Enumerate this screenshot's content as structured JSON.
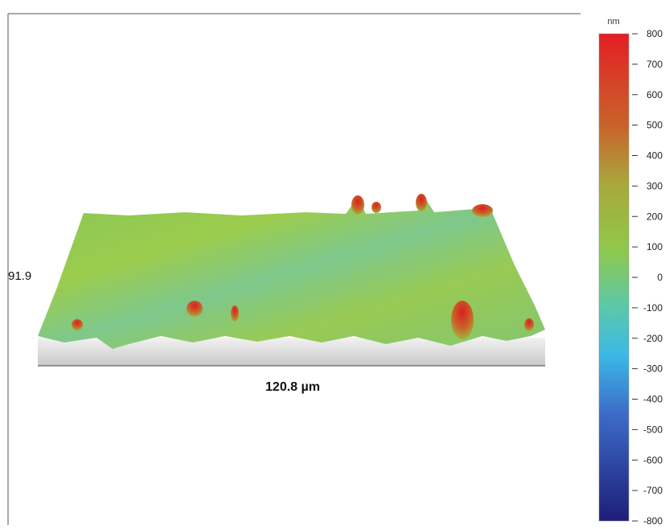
{
  "view": {
    "y_extent_label": "91.9",
    "x_extent_label": "120.8 µm"
  },
  "colorbar": {
    "unit": "nm",
    "lim": [
      -800,
      800
    ],
    "ticks": [
      800,
      700,
      600,
      500,
      400,
      300,
      200,
      100,
      0,
      -100,
      -200,
      -300,
      -400,
      -500,
      -600,
      -700,
      -800
    ]
  }
}
